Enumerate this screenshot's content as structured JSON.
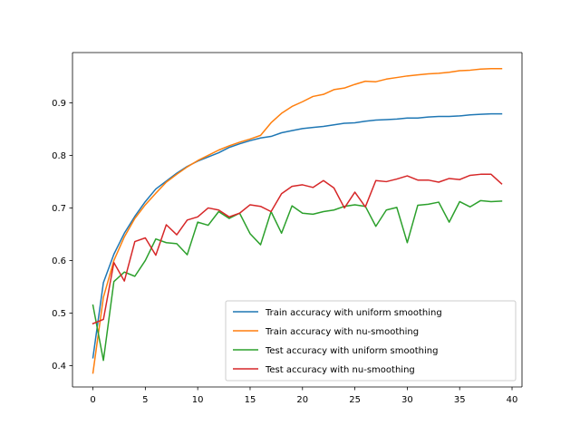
{
  "chart_data": {
    "type": "line",
    "title": "",
    "xlabel": "",
    "ylabel": "",
    "xlim": [
      -1.95,
      40.95
    ],
    "ylim": [
      0.3595,
      0.9955
    ],
    "xticks": [
      0,
      5,
      10,
      15,
      20,
      25,
      30,
      35,
      40
    ],
    "yticks": [
      0.4,
      0.5,
      0.6,
      0.7,
      0.8,
      0.9
    ],
    "grid": false,
    "legend_position": "lower right",
    "x": [
      0,
      1,
      2,
      3,
      4,
      5,
      6,
      7,
      8,
      9,
      10,
      11,
      12,
      13,
      14,
      15,
      16,
      17,
      18,
      19,
      20,
      21,
      22,
      23,
      24,
      25,
      26,
      27,
      28,
      29,
      30,
      31,
      32,
      33,
      34,
      35,
      36,
      37,
      38,
      39
    ],
    "series": [
      {
        "name": "Train accuracy with uniform smoothing",
        "color": "#1f77b4",
        "values": [
          0.415,
          0.558,
          0.612,
          0.652,
          0.684,
          0.712,
          0.736,
          0.751,
          0.766,
          0.779,
          0.789,
          0.797,
          0.805,
          0.815,
          0.822,
          0.828,
          0.833,
          0.836,
          0.843,
          0.847,
          0.851,
          0.853,
          0.855,
          0.858,
          0.861,
          0.862,
          0.865,
          0.867,
          0.868,
          0.869,
          0.871,
          0.871,
          0.873,
          0.874,
          0.874,
          0.875,
          0.877,
          0.878,
          0.879,
          0.879
        ]
      },
      {
        "name": "Train accuracy with nu-smoothing",
        "color": "#ff7f0e",
        "values": [
          0.386,
          0.53,
          0.6,
          0.645,
          0.68,
          0.706,
          0.728,
          0.749,
          0.764,
          0.778,
          0.79,
          0.8,
          0.81,
          0.818,
          0.825,
          0.831,
          0.838,
          0.862,
          0.88,
          0.893,
          0.902,
          0.912,
          0.916,
          0.925,
          0.928,
          0.935,
          0.941,
          0.94,
          0.945,
          0.948,
          0.951,
          0.953,
          0.955,
          0.956,
          0.958,
          0.961,
          0.962,
          0.964,
          0.965,
          0.965
        ]
      },
      {
        "name": "Test accuracy with uniform smoothing",
        "color": "#2ca02c",
        "values": [
          0.515,
          0.41,
          0.56,
          0.578,
          0.57,
          0.6,
          0.641,
          0.634,
          0.632,
          0.611,
          0.673,
          0.667,
          0.693,
          0.68,
          0.69,
          0.651,
          0.63,
          0.693,
          0.652,
          0.704,
          0.69,
          0.688,
          0.693,
          0.696,
          0.703,
          0.706,
          0.703,
          0.665,
          0.696,
          0.701,
          0.634,
          0.705,
          0.707,
          0.711,
          0.673,
          0.712,
          0.702,
          0.714,
          0.712,
          0.713
        ]
      },
      {
        "name": "Test accuracy with nu-smoothing",
        "color": "#d62728",
        "values": [
          0.48,
          0.488,
          0.596,
          0.561,
          0.636,
          0.643,
          0.61,
          0.668,
          0.649,
          0.677,
          0.683,
          0.7,
          0.696,
          0.683,
          0.69,
          0.706,
          0.703,
          0.693,
          0.727,
          0.741,
          0.744,
          0.739,
          0.752,
          0.738,
          0.7,
          0.73,
          0.702,
          0.752,
          0.75,
          0.755,
          0.761,
          0.753,
          0.753,
          0.749,
          0.756,
          0.754,
          0.762,
          0.764,
          0.764,
          0.746
        ]
      }
    ]
  }
}
